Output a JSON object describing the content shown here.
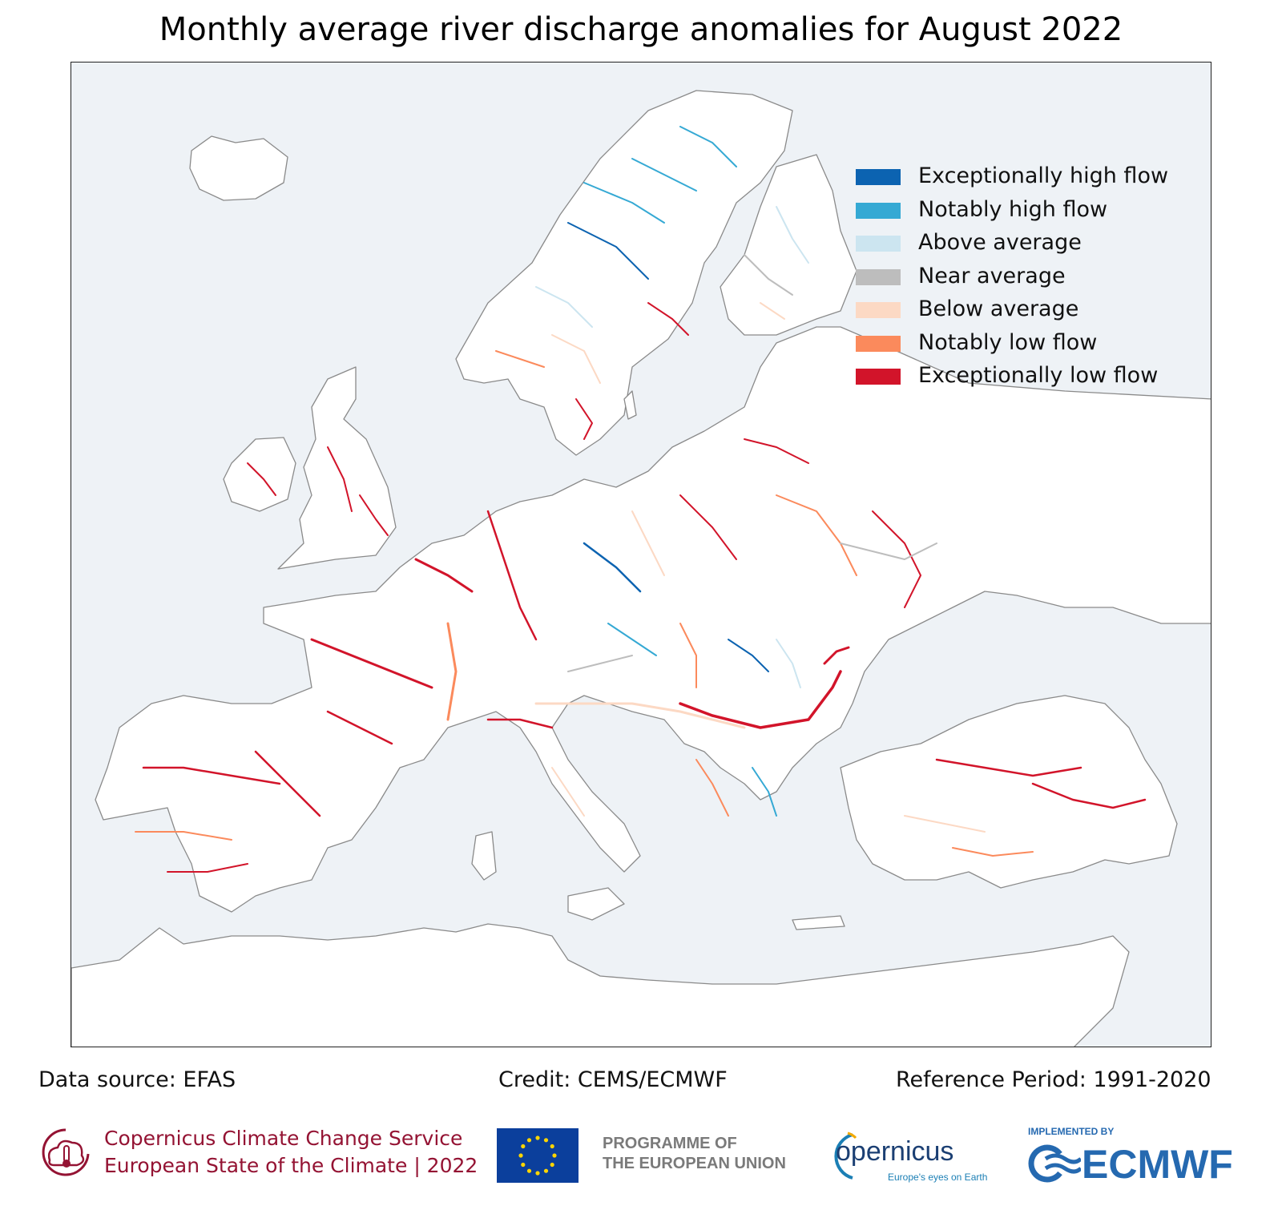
{
  "title": "Monthly average river discharge anomalies for August 2022",
  "legend": {
    "placement": "top-right",
    "items": [
      {
        "label": "Exceptionally high flow",
        "color": "#0c63b1"
      },
      {
        "label": "Notably high flow",
        "color": "#35a9d4"
      },
      {
        "label": "Above average",
        "color": "#cce5f0"
      },
      {
        "label": "Near average",
        "color": "#bdbdbd"
      },
      {
        "label": "Below average",
        "color": "#fcd9c4"
      },
      {
        "label": "Notably low flow",
        "color": "#fb8a5c"
      },
      {
        "label": "Exceptionally low flow",
        "color": "#d2142a"
      }
    ]
  },
  "map": {
    "sea_color": "#eef2f6",
    "land_color": "#ffffff",
    "coast_color": "#8a8a8a"
  },
  "footer": {
    "data_source": "Data source: EFAS",
    "credit": "Credit: CEMS/ECMWF",
    "reference_period": "Reference Period: 1991-2020"
  },
  "logos": {
    "c3s_line1": "Copernicus Climate Change Service",
    "c3s_line2": "European State of the Climate | 2022",
    "eu_line1": "PROGRAMME OF",
    "eu_line2": "THE EUROPEAN UNION",
    "copernicus_word": "opernicus",
    "copernicus_tagline": "Europe's eyes on Earth",
    "ecmwf_small": "IMPLEMENTED BY",
    "ecmwf_big": "ECMWF",
    "c3s_icon": "thermometer-cloud-icon",
    "eu_icon": "eu-flag-icon",
    "copernicus_icon": "copernicus-arc-icon",
    "ecmwf_icon": "ecmwf-waves-icon"
  }
}
